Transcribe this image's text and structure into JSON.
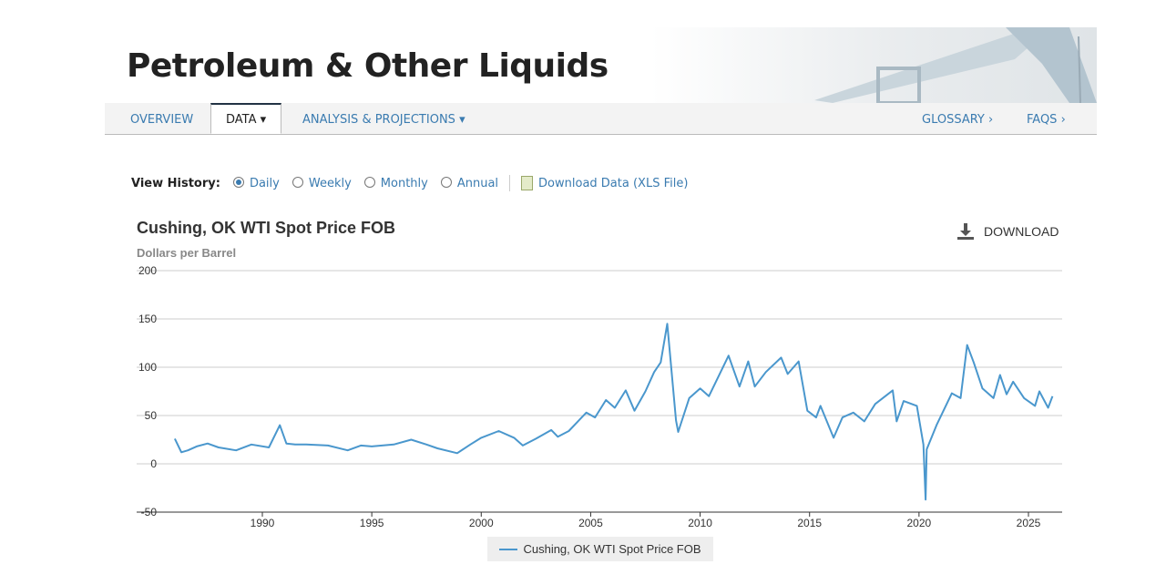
{
  "header": {
    "title": "Petroleum & Other Liquids"
  },
  "nav": {
    "tabs": [
      "OVERVIEW",
      "DATA",
      "ANALYSIS & PROJECTIONS"
    ],
    "active": "DATA",
    "right": [
      "GLOSSARY ›",
      "FAQS ›"
    ]
  },
  "view_history": {
    "label": "View History:",
    "options": [
      "Daily",
      "Weekly",
      "Monthly",
      "Annual"
    ],
    "selected": "Daily",
    "download_link": "Download Data (XLS File)"
  },
  "download_button": "DOWNLOAD",
  "colors": {
    "line": "#4a97cd",
    "link": "#3a7bb0"
  },
  "chart_data": {
    "type": "line",
    "title": "Cushing, OK WTI Spot Price FOB",
    "ylabel": "Dollars per Barrel",
    "ylim": [
      -50,
      200
    ],
    "yticks": [
      "200",
      "150",
      "100",
      "50",
      "0",
      "-50"
    ],
    "xlim": [
      1986,
      2026.3
    ],
    "xticks": [
      "1990",
      "1995",
      "2000",
      "2005",
      "2010",
      "2015",
      "2020",
      "2025"
    ],
    "grid": true,
    "legend": "bottom",
    "series": [
      {
        "name": "Cushing, OK WTI Spot Price FOB",
        "points": [
          [
            1986.0,
            26
          ],
          [
            1986.3,
            12
          ],
          [
            1986.6,
            14
          ],
          [
            1987.0,
            18
          ],
          [
            1987.5,
            21
          ],
          [
            1988.0,
            17
          ],
          [
            1988.8,
            14
          ],
          [
            1989.5,
            20
          ],
          [
            1990.3,
            17
          ],
          [
            1990.8,
            40
          ],
          [
            1991.1,
            21
          ],
          [
            1991.5,
            20
          ],
          [
            1992.0,
            20
          ],
          [
            1993.0,
            19
          ],
          [
            1993.9,
            14
          ],
          [
            1994.5,
            19
          ],
          [
            1995.0,
            18
          ],
          [
            1996.0,
            20
          ],
          [
            1996.8,
            25
          ],
          [
            1997.5,
            20
          ],
          [
            1998.0,
            16
          ],
          [
            1998.9,
            11
          ],
          [
            1999.5,
            20
          ],
          [
            2000.0,
            27
          ],
          [
            2000.8,
            34
          ],
          [
            2001.5,
            27
          ],
          [
            2001.9,
            19
          ],
          [
            2002.5,
            26
          ],
          [
            2003.2,
            35
          ],
          [
            2003.5,
            28
          ],
          [
            2004.0,
            34
          ],
          [
            2004.8,
            53
          ],
          [
            2005.2,
            48
          ],
          [
            2005.7,
            66
          ],
          [
            2006.1,
            58
          ],
          [
            2006.6,
            76
          ],
          [
            2007.0,
            55
          ],
          [
            2007.5,
            75
          ],
          [
            2007.9,
            95
          ],
          [
            2008.2,
            105
          ],
          [
            2008.5,
            145
          ],
          [
            2008.9,
            45
          ],
          [
            2009.0,
            33
          ],
          [
            2009.5,
            68
          ],
          [
            2010.0,
            78
          ],
          [
            2010.4,
            70
          ],
          [
            2011.3,
            112
          ],
          [
            2011.8,
            80
          ],
          [
            2012.2,
            106
          ],
          [
            2012.5,
            80
          ],
          [
            2013.0,
            95
          ],
          [
            2013.7,
            110
          ],
          [
            2014.0,
            93
          ],
          [
            2014.5,
            106
          ],
          [
            2014.9,
            55
          ],
          [
            2015.3,
            48
          ],
          [
            2015.5,
            60
          ],
          [
            2016.1,
            27
          ],
          [
            2016.5,
            48
          ],
          [
            2017.0,
            53
          ],
          [
            2017.5,
            44
          ],
          [
            2018.0,
            62
          ],
          [
            2018.8,
            76
          ],
          [
            2018.98,
            44
          ],
          [
            2019.3,
            65
          ],
          [
            2019.9,
            60
          ],
          [
            2020.2,
            20
          ],
          [
            2020.3,
            -37
          ],
          [
            2020.35,
            15
          ],
          [
            2020.8,
            40
          ],
          [
            2021.5,
            73
          ],
          [
            2021.9,
            68
          ],
          [
            2022.2,
            123
          ],
          [
            2022.5,
            105
          ],
          [
            2022.9,
            78
          ],
          [
            2023.4,
            68
          ],
          [
            2023.7,
            92
          ],
          [
            2024.0,
            72
          ],
          [
            2024.3,
            85
          ],
          [
            2024.8,
            68
          ],
          [
            2025.3,
            60
          ],
          [
            2025.5,
            75
          ],
          [
            2025.9,
            58
          ],
          [
            2026.1,
            70
          ]
        ]
      }
    ]
  }
}
